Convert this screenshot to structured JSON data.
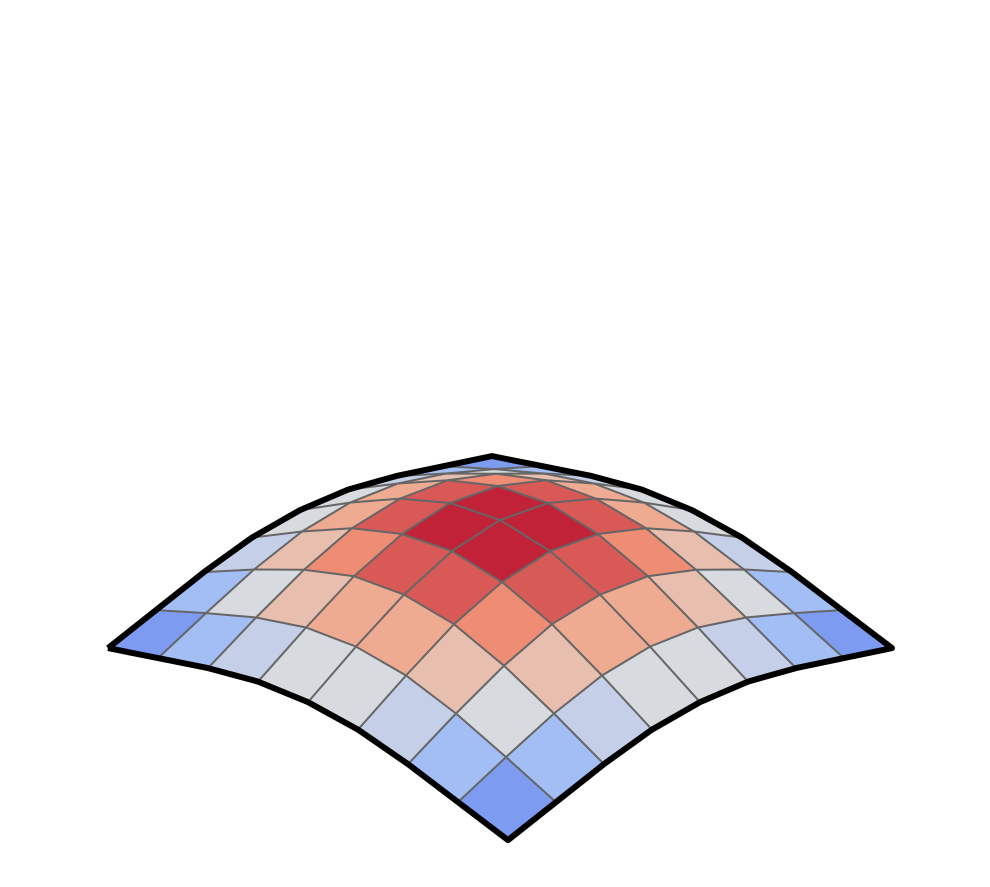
{
  "chart_data": {
    "type": "surface",
    "x": [
      -4,
      -3,
      -2,
      -1,
      0,
      1,
      2,
      3,
      4
    ],
    "y": [
      -4,
      -3,
      -2,
      -1,
      0,
      1,
      2,
      3,
      4
    ],
    "z": [
      [
        -0.83,
        -0.63,
        -0.43,
        -0.28,
        -0.23,
        -0.28,
        -0.43,
        -0.63,
        -0.83
      ],
      [
        -0.63,
        -0.33,
        -0.05,
        0.15,
        0.22,
        0.15,
        -0.05,
        -0.33,
        -0.63
      ],
      [
        -0.43,
        -0.05,
        0.29,
        0.54,
        0.62,
        0.54,
        0.29,
        -0.05,
        -0.43
      ],
      [
        -0.28,
        0.15,
        0.54,
        0.8,
        0.9,
        0.8,
        0.54,
        0.15,
        -0.28
      ],
      [
        -0.23,
        0.22,
        0.62,
        0.9,
        1,
        0.9,
        0.62,
        0.22,
        -0.23
      ],
      [
        -0.28,
        0.15,
        0.54,
        0.8,
        0.9,
        0.8,
        0.54,
        0.15,
        -0.28
      ],
      [
        -0.43,
        -0.05,
        0.29,
        0.54,
        0.62,
        0.54,
        0.29,
        -0.05,
        -0.43
      ],
      [
        -0.63,
        -0.33,
        -0.05,
        0.15,
        0.22,
        0.15,
        -0.05,
        -0.33,
        -0.63
      ],
      [
        -0.83,
        -0.63,
        -0.43,
        -0.28,
        -0.23,
        -0.28,
        -0.43,
        -0.63,
        -0.83
      ]
    ],
    "zlim": [
      -1,
      1
    ],
    "colormap": "coolwarm",
    "wireframe_color": "#666666",
    "edge_color": "#000000"
  }
}
